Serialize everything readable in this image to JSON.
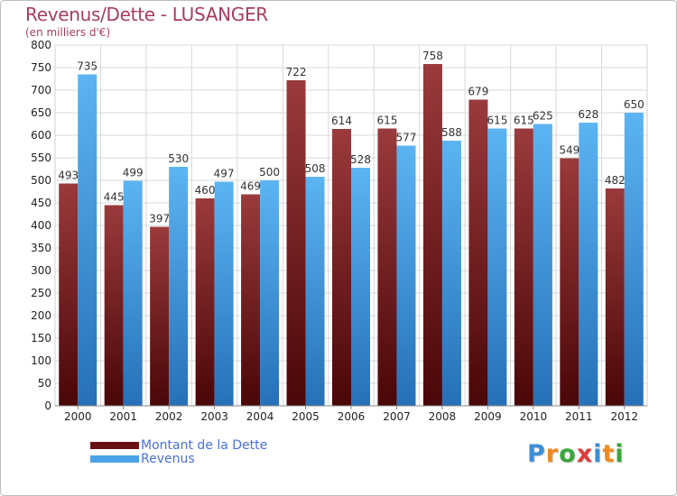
{
  "header": {
    "title": "Revenus/Dette - LUSANGER",
    "subtitle": "(en milliers d'€)"
  },
  "chart_data": {
    "type": "bar",
    "title": "Revenus/Dette - LUSANGER",
    "subtitle": "(en milliers d'€)",
    "categories": [
      "2000",
      "2001",
      "2002",
      "2003",
      "2004",
      "2005",
      "2006",
      "2007",
      "2008",
      "2009",
      "2010",
      "2011",
      "2012"
    ],
    "series": [
      {
        "name": "Montant de la Dette",
        "values": [
          493,
          445,
          397,
          460,
          469,
          722,
          614,
          615,
          758,
          679,
          615,
          549,
          482
        ],
        "color": "#7a1e22"
      },
      {
        "name": "Revenus",
        "values": [
          735,
          499,
          530,
          497,
          500,
          508,
          528,
          577,
          588,
          615,
          625,
          628,
          650
        ],
        "color": "#4aa3e6"
      }
    ],
    "ylim": [
      0,
      800
    ],
    "yticks": [
      0,
      50,
      100,
      150,
      200,
      250,
      300,
      350,
      400,
      450,
      500,
      550,
      600,
      650,
      700,
      750,
      800
    ],
    "grid": true,
    "legend_position": "bottom-left"
  },
  "logo": {
    "letters": [
      {
        "ch": "P",
        "color": "#3a8fd6"
      },
      {
        "ch": "r",
        "color": "#f08a1c"
      },
      {
        "ch": "o",
        "color": "#3aa63a"
      },
      {
        "ch": "x",
        "color": "#e03a3a"
      },
      {
        "ch": "i",
        "color": "#3a8fd6"
      },
      {
        "ch": "t",
        "color": "#f08a1c"
      },
      {
        "ch": "i",
        "color": "#3aa63a"
      }
    ]
  }
}
